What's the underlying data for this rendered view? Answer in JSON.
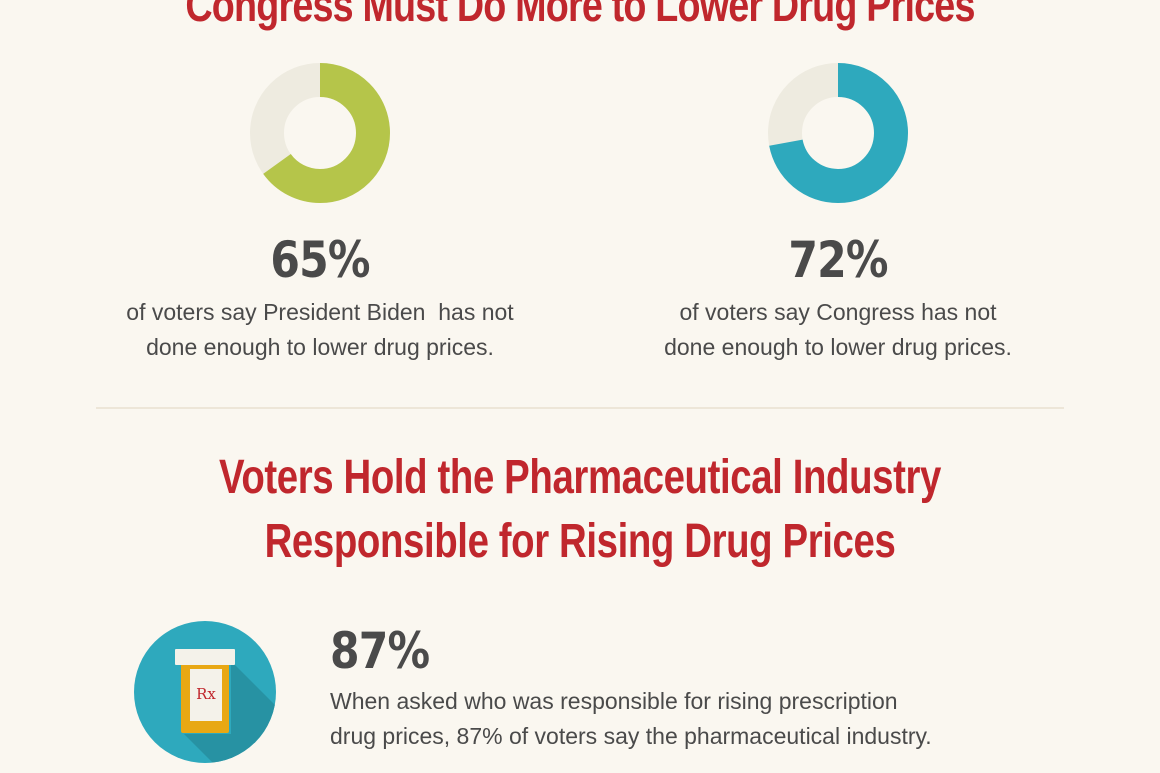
{
  "top_title": "Congress Must Do More to Lower Drug Prices",
  "stats": [
    {
      "pct_label": "65%",
      "value": 65,
      "color": "#b5c54a",
      "track_color": "#eeebe0",
      "line1": "of voters say President Biden  has not",
      "line2": "done enough to lower drug prices."
    },
    {
      "pct_label": "72%",
      "value": 72,
      "color": "#2ea9bd",
      "track_color": "#eeebe0",
      "line1": "of voters say Congress has not",
      "line2": "done enough to lower drug prices."
    }
  ],
  "section_title": {
    "line1": "Voters Hold the Pharmaceutical Industry",
    "line2": "Responsible for Rising Drug Prices"
  },
  "pharma_stat": {
    "pct_label": "87%",
    "line1": "When asked who was responsible for rising prescription",
    "line2": "drug prices, 87% of voters say the pharmaceutical industry."
  },
  "icon": {
    "name": "prescription-bottle-icon",
    "label": "Rx",
    "circle_color": "#2ea9bd",
    "bottle_color": "#e8a814",
    "label_text_color": "#c0272d"
  },
  "colors": {
    "title": "#c0272d",
    "text": "#4a4a4a",
    "background": "#faf7f0"
  }
}
